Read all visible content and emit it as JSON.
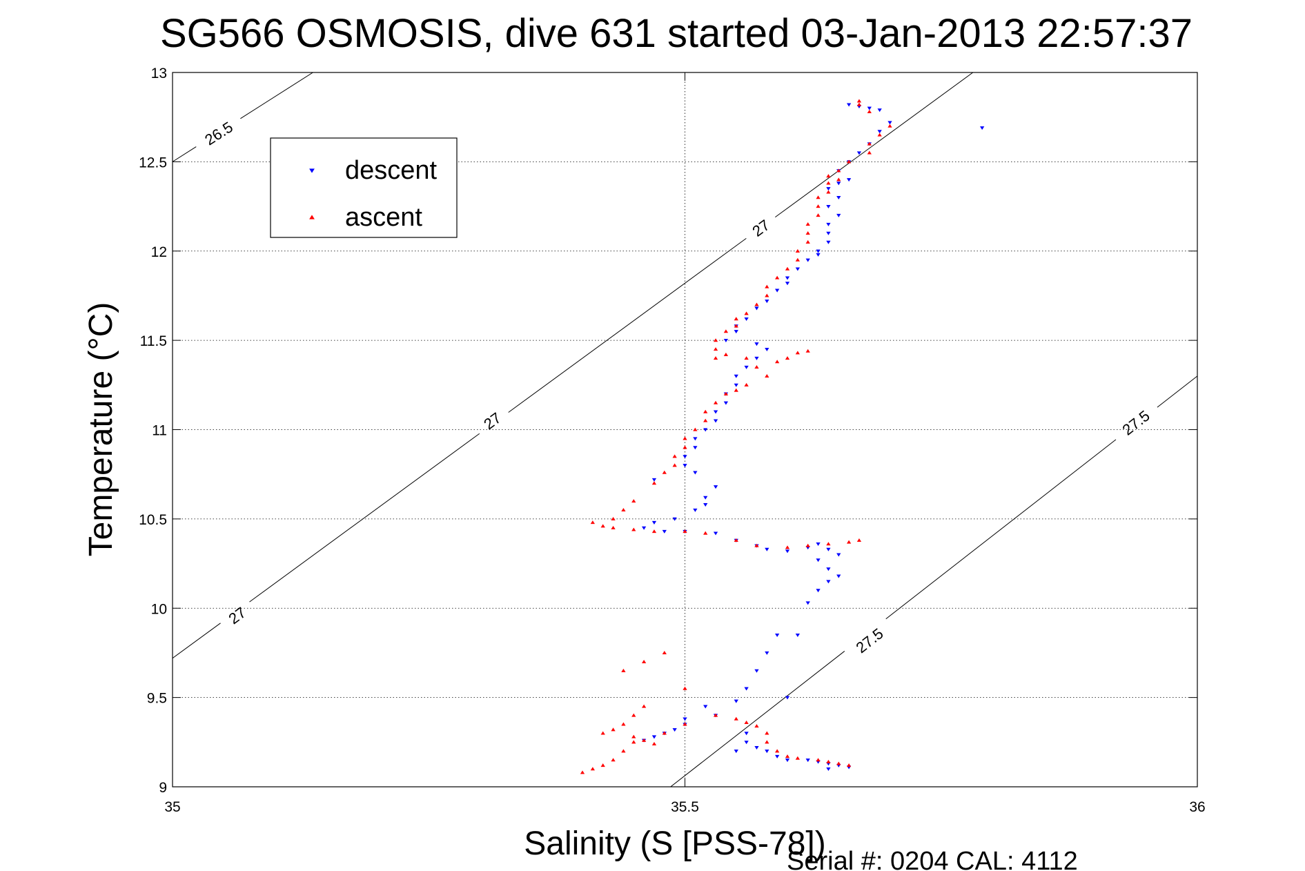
{
  "chart_data": {
    "type": "scatter",
    "title": "SG566 OSMOSIS, dive 631 started 03-Jan-2013 22:57:37",
    "xlabel": "Salinity (S [PSS-78])",
    "ylabel": "Temperature (°C)",
    "footer": "Serial #: 0204  CAL: 4112",
    "xlim": [
      35,
      36
    ],
    "ylim": [
      9,
      13
    ],
    "x_ticks": [
      35,
      35.5,
      36
    ],
    "x_tick_labels": [
      "35",
      "35.5",
      "36"
    ],
    "y_ticks": [
      9,
      9.5,
      10,
      10.5,
      11,
      11.5,
      12,
      12.5,
      13
    ],
    "y_tick_labels": [
      "9",
      "9.5",
      "10",
      "10.5",
      "11",
      "11.5",
      "12",
      "12.5",
      "13"
    ],
    "grid": true,
    "legend_position": "top-left",
    "series": [
      {
        "name": "descent",
        "color": "#0000ff",
        "marker": "triangle-down",
        "points": [
          [
            35.66,
            12.82
          ],
          [
            35.67,
            12.81
          ],
          [
            35.68,
            12.8
          ],
          [
            35.69,
            12.79
          ],
          [
            35.7,
            12.72
          ],
          [
            35.69,
            12.67
          ],
          [
            35.68,
            12.6
          ],
          [
            35.67,
            12.55
          ],
          [
            35.66,
            12.5
          ],
          [
            35.65,
            12.45
          ],
          [
            35.66,
            12.4
          ],
          [
            35.65,
            12.38
          ],
          [
            35.64,
            12.35
          ],
          [
            35.65,
            12.3
          ],
          [
            35.64,
            12.25
          ],
          [
            35.65,
            12.2
          ],
          [
            35.64,
            12.15
          ],
          [
            35.64,
            12.1
          ],
          [
            35.64,
            12.05
          ],
          [
            35.63,
            12.0
          ],
          [
            35.63,
            11.98
          ],
          [
            35.62,
            11.95
          ],
          [
            35.61,
            11.9
          ],
          [
            35.6,
            11.85
          ],
          [
            35.6,
            11.82
          ],
          [
            35.59,
            11.78
          ],
          [
            35.58,
            11.72
          ],
          [
            35.57,
            11.68
          ],
          [
            35.56,
            11.62
          ],
          [
            35.55,
            11.58
          ],
          [
            35.55,
            11.55
          ],
          [
            35.54,
            11.5
          ],
          [
            35.57,
            11.48
          ],
          [
            35.58,
            11.45
          ],
          [
            35.57,
            11.4
          ],
          [
            35.56,
            11.35
          ],
          [
            35.55,
            11.3
          ],
          [
            35.55,
            11.25
          ],
          [
            35.54,
            11.2
          ],
          [
            35.54,
            11.15
          ],
          [
            35.53,
            11.1
          ],
          [
            35.53,
            11.05
          ],
          [
            35.52,
            11.0
          ],
          [
            35.51,
            10.95
          ],
          [
            35.51,
            10.9
          ],
          [
            35.5,
            10.85
          ],
          [
            35.5,
            10.8
          ],
          [
            35.51,
            10.76
          ],
          [
            35.47,
            10.72
          ],
          [
            35.53,
            10.68
          ],
          [
            35.52,
            10.62
          ],
          [
            35.52,
            10.58
          ],
          [
            35.51,
            10.55
          ],
          [
            35.49,
            10.5
          ],
          [
            35.47,
            10.48
          ],
          [
            35.46,
            10.45
          ],
          [
            35.48,
            10.43
          ],
          [
            35.5,
            10.43
          ],
          [
            35.53,
            10.42
          ],
          [
            35.55,
            10.38
          ],
          [
            35.57,
            10.35
          ],
          [
            35.58,
            10.33
          ],
          [
            35.6,
            10.32
          ],
          [
            35.62,
            10.34
          ],
          [
            35.63,
            10.36
          ],
          [
            35.64,
            10.33
          ],
          [
            35.65,
            10.3
          ],
          [
            35.63,
            10.27
          ],
          [
            35.64,
            10.22
          ],
          [
            35.65,
            10.18
          ],
          [
            35.64,
            10.15
          ],
          [
            35.63,
            10.1
          ],
          [
            35.62,
            10.03
          ],
          [
            35.59,
            9.85
          ],
          [
            35.61,
            9.85
          ],
          [
            35.58,
            9.75
          ],
          [
            35.57,
            9.65
          ],
          [
            35.56,
            9.55
          ],
          [
            35.6,
            9.5
          ],
          [
            35.55,
            9.48
          ],
          [
            35.52,
            9.45
          ],
          [
            35.53,
            9.4
          ],
          [
            35.5,
            9.38
          ],
          [
            35.5,
            9.35
          ],
          [
            35.49,
            9.32
          ],
          [
            35.48,
            9.3
          ],
          [
            35.47,
            9.28
          ],
          [
            35.46,
            9.26
          ],
          [
            35.56,
            9.3
          ],
          [
            35.56,
            9.25
          ],
          [
            35.55,
            9.2
          ],
          [
            35.57,
            9.22
          ],
          [
            35.58,
            9.2
          ],
          [
            35.59,
            9.17
          ],
          [
            35.6,
            9.15
          ],
          [
            35.62,
            9.15
          ],
          [
            35.63,
            9.14
          ],
          [
            35.64,
            9.13
          ],
          [
            35.65,
            9.12
          ],
          [
            35.66,
            9.11
          ],
          [
            35.64,
            9.1
          ],
          [
            35.79,
            12.69
          ]
        ]
      },
      {
        "name": "ascent",
        "color": "#ff0000",
        "marker": "triangle-up",
        "points": [
          [
            35.67,
            12.84
          ],
          [
            35.67,
            12.82
          ],
          [
            35.68,
            12.78
          ],
          [
            35.7,
            12.7
          ],
          [
            35.69,
            12.65
          ],
          [
            35.68,
            12.6
          ],
          [
            35.68,
            12.55
          ],
          [
            35.66,
            12.5
          ],
          [
            35.65,
            12.45
          ],
          [
            35.64,
            12.42
          ],
          [
            35.65,
            12.4
          ],
          [
            35.64,
            12.38
          ],
          [
            35.64,
            12.33
          ],
          [
            35.63,
            12.3
          ],
          [
            35.63,
            12.25
          ],
          [
            35.63,
            12.2
          ],
          [
            35.62,
            12.15
          ],
          [
            35.62,
            12.1
          ],
          [
            35.62,
            12.05
          ],
          [
            35.61,
            12.0
          ],
          [
            35.61,
            11.95
          ],
          [
            35.6,
            11.9
          ],
          [
            35.59,
            11.85
          ],
          [
            35.58,
            11.8
          ],
          [
            35.58,
            11.75
          ],
          [
            35.57,
            11.7
          ],
          [
            35.56,
            11.65
          ],
          [
            35.55,
            11.62
          ],
          [
            35.55,
            11.58
          ],
          [
            35.54,
            11.55
          ],
          [
            35.53,
            11.5
          ],
          [
            35.53,
            11.45
          ],
          [
            35.54,
            11.42
          ],
          [
            35.53,
            11.4
          ],
          [
            35.56,
            11.4
          ],
          [
            35.57,
            11.35
          ],
          [
            35.59,
            11.38
          ],
          [
            35.6,
            11.4
          ],
          [
            35.61,
            11.43
          ],
          [
            35.62,
            11.44
          ],
          [
            35.58,
            11.3
          ],
          [
            35.56,
            11.25
          ],
          [
            35.55,
            11.22
          ],
          [
            35.54,
            11.2
          ],
          [
            35.53,
            11.15
          ],
          [
            35.52,
            11.1
          ],
          [
            35.52,
            11.05
          ],
          [
            35.51,
            11.0
          ],
          [
            35.5,
            10.95
          ],
          [
            35.5,
            10.9
          ],
          [
            35.49,
            10.85
          ],
          [
            35.49,
            10.8
          ],
          [
            35.48,
            10.76
          ],
          [
            35.47,
            10.7
          ],
          [
            35.45,
            10.6
          ],
          [
            35.44,
            10.55
          ],
          [
            35.43,
            10.5
          ],
          [
            35.41,
            10.48
          ],
          [
            35.42,
            10.46
          ],
          [
            35.43,
            10.45
          ],
          [
            35.45,
            10.44
          ],
          [
            35.47,
            10.43
          ],
          [
            35.5,
            10.43
          ],
          [
            35.52,
            10.42
          ],
          [
            35.55,
            10.38
          ],
          [
            35.57,
            10.35
          ],
          [
            35.6,
            10.34
          ],
          [
            35.62,
            10.35
          ],
          [
            35.64,
            10.36
          ],
          [
            35.66,
            10.37
          ],
          [
            35.67,
            10.38
          ],
          [
            35.48,
            9.75
          ],
          [
            35.46,
            9.7
          ],
          [
            35.44,
            9.65
          ],
          [
            35.5,
            9.55
          ],
          [
            35.46,
            9.45
          ],
          [
            35.45,
            9.4
          ],
          [
            35.44,
            9.35
          ],
          [
            35.43,
            9.32
          ],
          [
            35.42,
            9.3
          ],
          [
            35.45,
            9.28
          ],
          [
            35.46,
            9.26
          ],
          [
            35.47,
            9.24
          ],
          [
            35.48,
            9.3
          ],
          [
            35.5,
            9.35
          ],
          [
            35.53,
            9.4
          ],
          [
            35.55,
            9.38
          ],
          [
            35.56,
            9.36
          ],
          [
            35.57,
            9.34
          ],
          [
            35.58,
            9.3
          ],
          [
            35.58,
            9.25
          ],
          [
            35.59,
            9.2
          ],
          [
            35.6,
            9.17
          ],
          [
            35.61,
            9.16
          ],
          [
            35.63,
            9.15
          ],
          [
            35.64,
            9.14
          ],
          [
            35.65,
            9.13
          ],
          [
            35.66,
            9.12
          ],
          [
            35.41,
            9.1
          ],
          [
            35.4,
            9.08
          ],
          [
            35.42,
            9.12
          ],
          [
            35.43,
            9.15
          ],
          [
            35.44,
            9.2
          ],
          [
            35.45,
            9.25
          ]
        ]
      }
    ],
    "contours": [
      {
        "label": "26.5",
        "p1": [
          35.0,
          12.5
        ],
        "p2": [
          35.137,
          13.0
        ],
        "label_positions": [
          [
            35.045,
            12.66
          ]
        ]
      },
      {
        "label": "27",
        "p1": [
          35.0,
          9.72
        ],
        "p2": [
          35.781,
          13.0
        ],
        "label_positions": [
          [
            35.063,
            9.96
          ],
          [
            35.312,
            11.05
          ],
          [
            35.574,
            12.13
          ]
        ]
      },
      {
        "label": "27.5",
        "p1": [
          35.486,
          9.0
        ],
        "p2": [
          36.0,
          11.3
        ],
        "label_positions": [
          [
            35.68,
            9.82
          ],
          [
            35.94,
            11.04
          ]
        ]
      }
    ]
  }
}
